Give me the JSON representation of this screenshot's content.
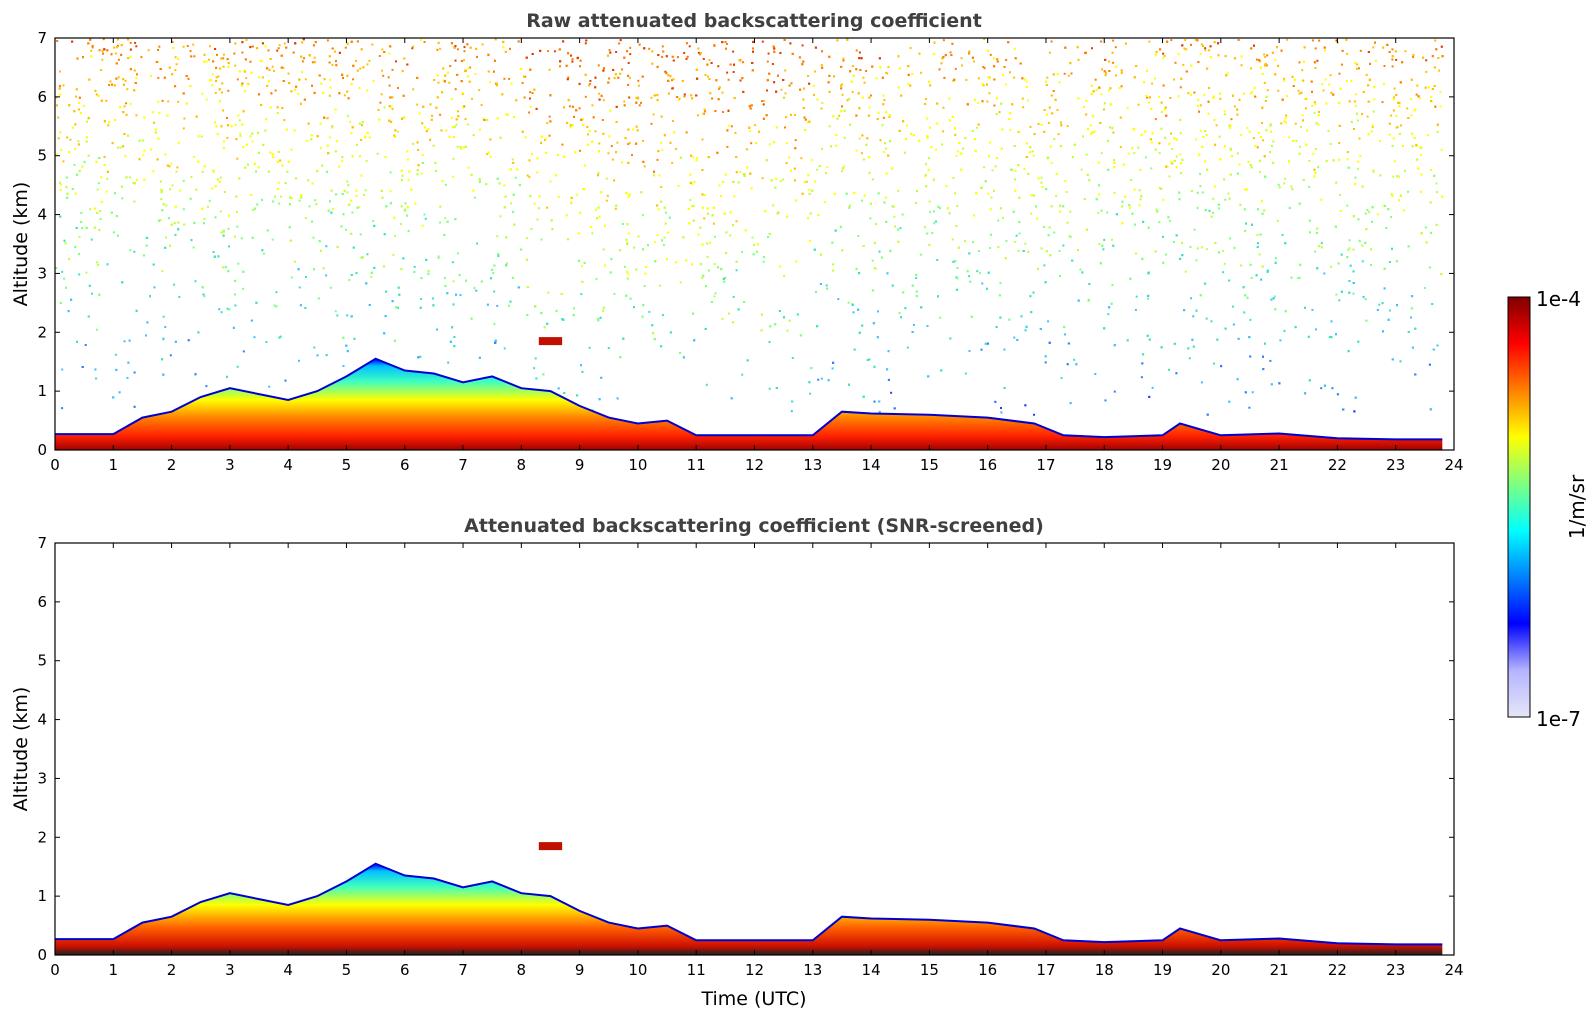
{
  "chart_data": [
    {
      "type": "heatmap",
      "id": "raw",
      "title": "Raw attenuated backscattering coefficient",
      "xlabel": "",
      "ylabel": "Altitude (km)",
      "xlim": [
        0,
        24
      ],
      "ylim": [
        0,
        7
      ],
      "xticks": [
        "0",
        "1",
        "2",
        "3",
        "4",
        "5",
        "6",
        "7",
        "8",
        "9",
        "10",
        "11",
        "12",
        "13",
        "14",
        "15",
        "16",
        "17",
        "18",
        "19",
        "20",
        "21",
        "22",
        "23",
        "24"
      ],
      "yticks": [
        "0",
        "1",
        "2",
        "3",
        "4",
        "5",
        "6",
        "7"
      ],
      "data_end_time": 23.8,
      "boundary_layer_top_km": {
        "time": [
          0,
          1,
          1.5,
          2,
          2.5,
          3,
          3.5,
          4,
          4.5,
          5,
          5.5,
          6,
          6.5,
          7,
          7.5,
          8,
          8.5,
          9,
          9.5,
          10,
          10.5,
          11,
          12,
          13,
          13.5,
          14,
          15,
          16,
          16.8,
          17.3,
          18,
          19,
          19.3,
          20,
          21,
          22,
          23,
          23.8
        ],
        "height": [
          0.27,
          0.27,
          0.55,
          0.65,
          0.9,
          1.05,
          0.95,
          0.85,
          1.0,
          1.25,
          1.55,
          1.35,
          1.3,
          1.15,
          1.25,
          1.05,
          1.0,
          0.75,
          0.55,
          0.45,
          0.5,
          0.25,
          0.25,
          0.25,
          0.65,
          0.62,
          0.6,
          0.55,
          0.45,
          0.25,
          0.22,
          0.25,
          0.45,
          0.25,
          0.28,
          0.2,
          0.18,
          0.18
        ]
      },
      "features": {
        "elevated_layer": {
          "time": [
            8.3,
            8.7
          ],
          "height_km": 1.85
        },
        "noise_region_top_km": 7
      }
    },
    {
      "type": "heatmap",
      "id": "screened",
      "title": "Attenuated backscattering coefficient (SNR-screened)",
      "xlabel": "Time (UTC)",
      "ylabel": "Altitude (km)",
      "xlim": [
        0,
        24
      ],
      "ylim": [
        0,
        7
      ],
      "xticks": [
        "0",
        "1",
        "2",
        "3",
        "4",
        "5",
        "6",
        "7",
        "8",
        "9",
        "10",
        "11",
        "12",
        "13",
        "14",
        "15",
        "16",
        "17",
        "18",
        "19",
        "20",
        "21",
        "22",
        "23",
        "24"
      ],
      "yticks": [
        "0",
        "1",
        "2",
        "3",
        "4",
        "5",
        "6",
        "7"
      ],
      "data_end_time": 23.8
    }
  ],
  "colorbar": {
    "label": "1/m/sr",
    "max_label": "1e-4",
    "min_label": "1e-7",
    "scale": "log",
    "colormap": [
      "#e6e6f8",
      "#b4b4ff",
      "#0000ff",
      "#0080ff",
      "#00ffff",
      "#80ff80",
      "#ffff00",
      "#ff8000",
      "#ff0000",
      "#800000"
    ]
  }
}
